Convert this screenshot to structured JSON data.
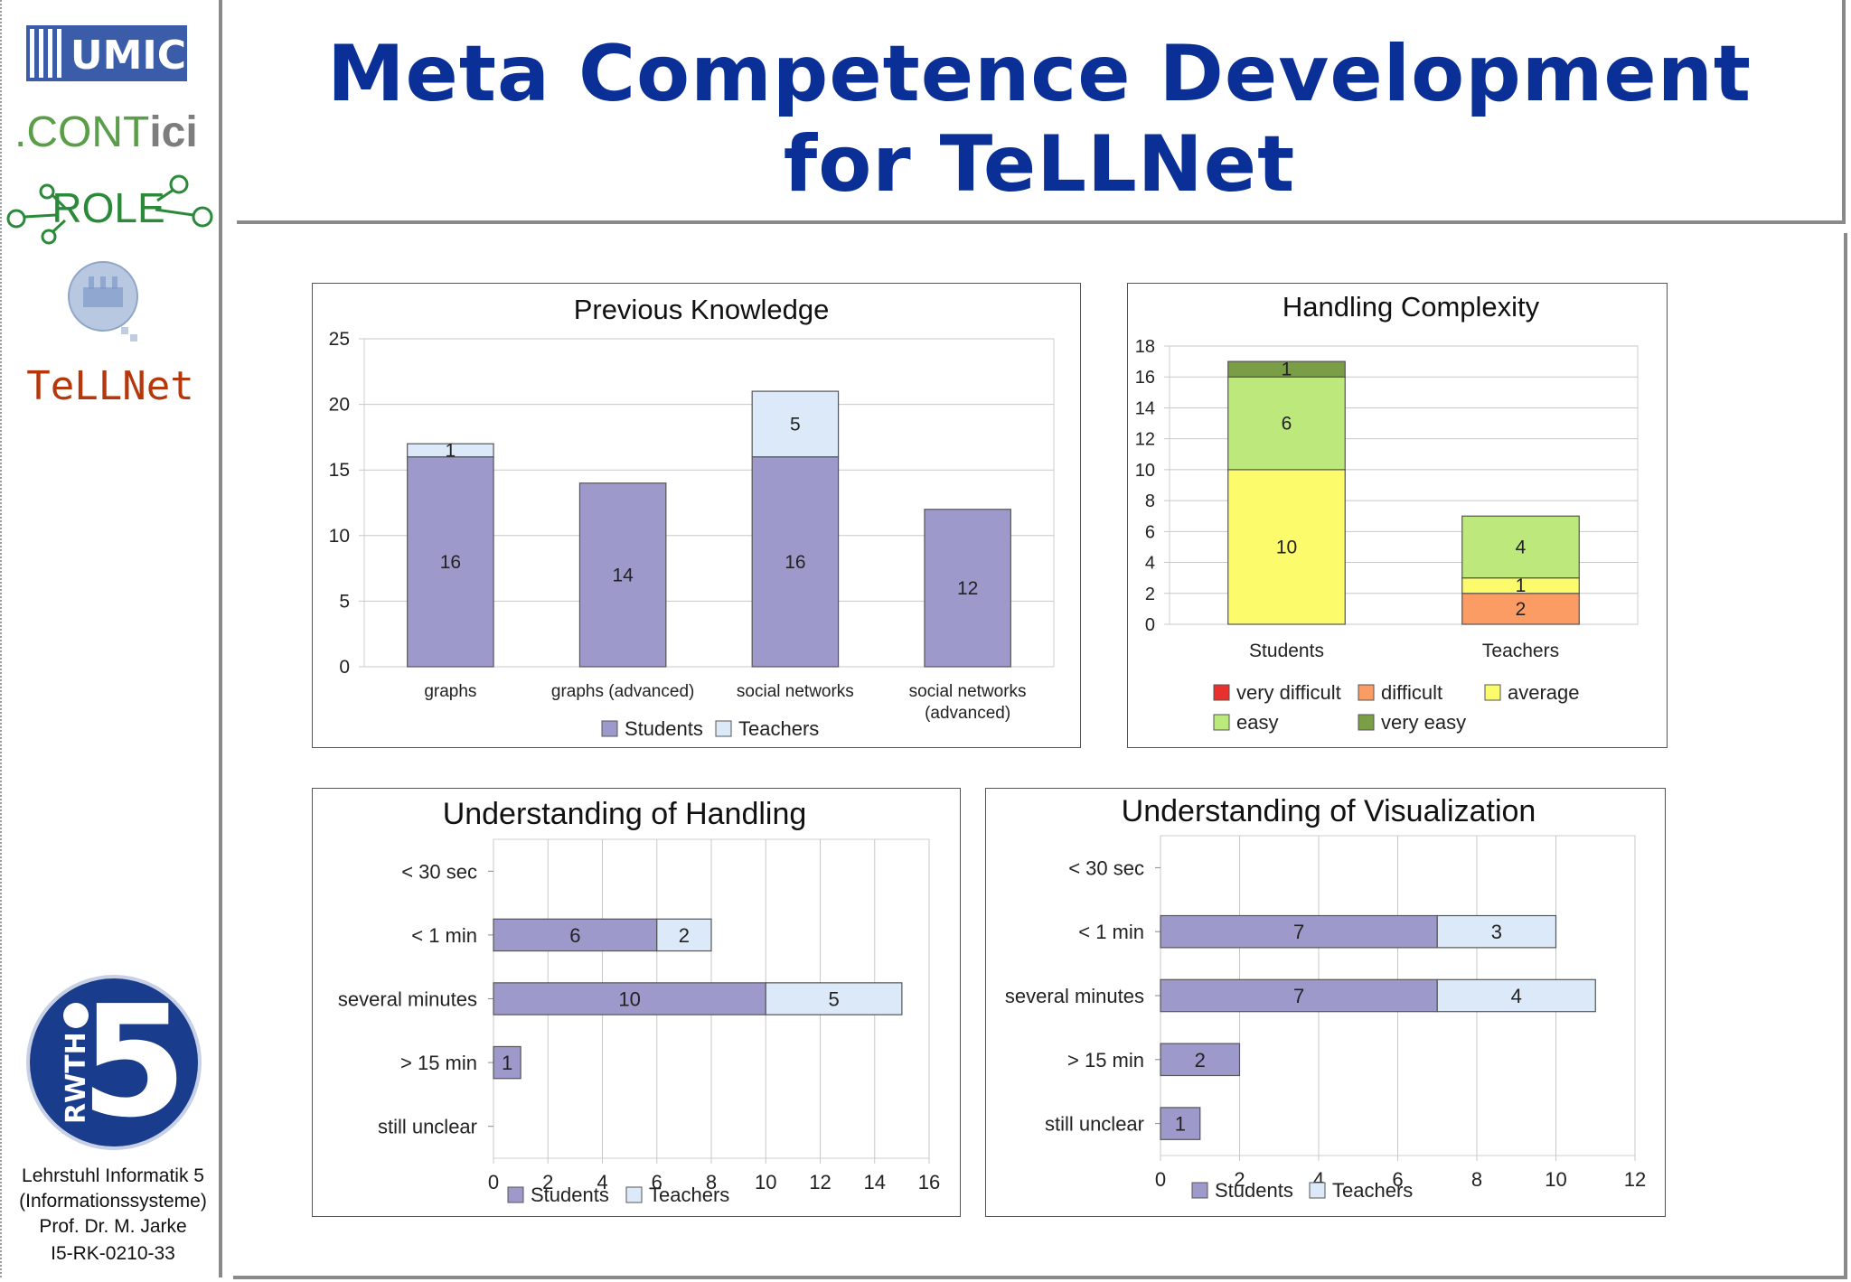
{
  "slide": {
    "title_line1": "Meta Competence Development",
    "title_line2": "for TeLLNet"
  },
  "sidebar": {
    "logo_umic": "UMIC",
    "logo_conti_part1": ".CONT",
    "logo_conti_part2": "ici",
    "logo_role": "ROLE",
    "logo_tellnet": "TeLLNet",
    "rwth_badge_text": "RWTH",
    "rwth_badge_number": "5",
    "footer_line1": "Lehrstuhl Informatik 5",
    "footer_line2": "(Informationssysteme)",
    "footer_line3": "Prof. Dr. M. Jarke",
    "footer_line4": "I5-RK-0210-33"
  },
  "colors": {
    "title": "#0a2f96",
    "students": "#9d9acb",
    "teachers": "#dce9f8",
    "very_difficult": "#e8302c",
    "difficult": "#fa9c63",
    "average": "#fbfb6c",
    "easy": "#bce87c",
    "very_easy": "#7a9e45"
  },
  "chart_data": [
    {
      "type": "bar",
      "stacked": true,
      "title": "Previous Knowledge",
      "categories": [
        "graphs",
        "graphs (advanced)",
        "social networks",
        "social networks (advanced)"
      ],
      "category_labels": [
        [
          "graphs"
        ],
        [
          "graphs (advanced)"
        ],
        [
          "social networks"
        ],
        [
          "social networks",
          "(advanced)"
        ]
      ],
      "series": [
        {
          "name": "Students",
          "values": [
            16,
            14,
            16,
            12
          ]
        },
        {
          "name": "Teachers",
          "values": [
            1,
            0,
            5,
            0
          ]
        }
      ],
      "ylim": [
        0,
        25
      ],
      "yticks": [
        0,
        5,
        10,
        15,
        20,
        25
      ],
      "grid": true,
      "legend": "bottom"
    },
    {
      "type": "bar",
      "stacked": true,
      "title": "Handling Complexity",
      "categories": [
        "Students",
        "Teachers"
      ],
      "series": [
        {
          "name": "very difficult",
          "values": [
            0,
            0
          ]
        },
        {
          "name": "difficult",
          "values": [
            0,
            2
          ]
        },
        {
          "name": "average",
          "values": [
            10,
            1
          ]
        },
        {
          "name": "easy",
          "values": [
            6,
            4
          ]
        },
        {
          "name": "very easy",
          "values": [
            1,
            0
          ]
        }
      ],
      "ylim": [
        0,
        18
      ],
      "yticks": [
        0,
        2,
        4,
        6,
        8,
        10,
        12,
        14,
        16,
        18
      ],
      "grid": true,
      "legend": "bottom"
    },
    {
      "type": "bar",
      "orientation": "horizontal",
      "stacked": true,
      "title": "Understanding of Handling",
      "categories": [
        "< 30 sec",
        "< 1 min",
        "several minutes",
        "> 15 min",
        "still unclear"
      ],
      "series": [
        {
          "name": "Students",
          "values": [
            0,
            6,
            10,
            1,
            0
          ]
        },
        {
          "name": "Teachers",
          "values": [
            0,
            2,
            5,
            0,
            0
          ]
        }
      ],
      "xlim": [
        0,
        16
      ],
      "xticks": [
        0,
        2,
        4,
        6,
        8,
        10,
        12,
        14,
        16
      ],
      "grid": true,
      "legend": "bottom"
    },
    {
      "type": "bar",
      "orientation": "horizontal",
      "stacked": true,
      "title": "Understanding of Visualization",
      "categories": [
        "< 30 sec",
        "< 1 min",
        "several minutes",
        "> 15 min",
        "still unclear"
      ],
      "series": [
        {
          "name": "Students",
          "values": [
            0,
            7,
            7,
            2,
            1
          ]
        },
        {
          "name": "Teachers",
          "values": [
            0,
            3,
            4,
            0,
            0
          ]
        }
      ],
      "xlim": [
        0,
        12
      ],
      "xticks": [
        0,
        2,
        4,
        6,
        8,
        10,
        12
      ],
      "grid": true,
      "legend": "bottom"
    }
  ]
}
